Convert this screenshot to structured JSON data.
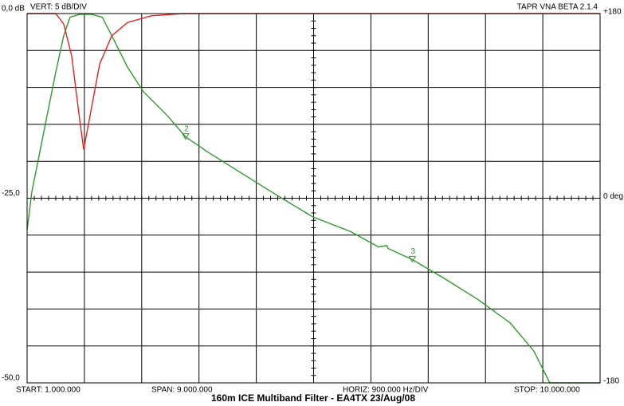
{
  "chart_data": {
    "type": "line",
    "header_left": "VERT:  5 dB/DIV",
    "header_right": "TAPR VNA BETA 2.1.4",
    "title": "160m ICE Multiband Filter - EA4TX 23/Aug/08",
    "footer_labels": [
      "START: 1.000.000",
      "SPAN: 9.000.000",
      "HORIZ: 900.000 Hz/DIV",
      "STOP: 10.000.000"
    ],
    "xlim": [
      1000000,
      10000000
    ],
    "xgrid": [
      1000000,
      1900000,
      2800000,
      3700000,
      4600000,
      5500000,
      6400000,
      7300000,
      8200000,
      9100000,
      10000000
    ],
    "ylim": [
      -50,
      0
    ],
    "ygrid": [
      0,
      -5,
      -10,
      -15,
      -20,
      -25,
      -30,
      -35,
      -40,
      -45,
      -50
    ],
    "yticks": [
      {
        "value": 0,
        "label": "0,0 dB"
      },
      {
        "value": -25,
        "label": "-25,0"
      },
      {
        "value": -50,
        "label": "-50,0"
      }
    ],
    "y2lim": [
      -180,
      180
    ],
    "y2ticks": [
      {
        "value": 180,
        "label": "+180"
      },
      {
        "value": 0,
        "label": "0 deg"
      },
      {
        "value": -180,
        "label": "-180"
      }
    ],
    "series": [
      {
        "color": "#2e9a2e",
        "x": [
          1000000,
          1075000,
          1175000,
          1325000,
          1450000,
          1575000,
          1675000,
          1825000,
          2010000,
          2180000,
          2330000,
          2580000,
          2830000,
          3200000,
          3490000,
          3830000,
          4330000,
          4830000,
          5480000,
          6080000,
          6520000,
          6650000,
          6670000,
          7050000,
          7580000,
          8080000,
          8590000,
          8960000,
          9210000,
          10000000
        ],
        "values": [
          -29.3,
          -24.1,
          -19.8,
          -13.3,
          -7.9,
          -3.0,
          -0.5,
          -0.1,
          -0.1,
          -0.5,
          -3.0,
          -7.3,
          -10.6,
          -13.8,
          -16.7,
          -18.7,
          -21.4,
          -24.1,
          -27.5,
          -29.5,
          -31.6,
          -31.4,
          -31.8,
          -33.3,
          -36.0,
          -38.7,
          -41.9,
          -45.7,
          -50.0,
          -50.0
        ]
      },
      {
        "color": "#e82020",
        "x": [
          1000000,
          1450000,
          1575000,
          1700000,
          1826000,
          1889000,
          1976000,
          2140000,
          2330000,
          2580000,
          2950000,
          3450000,
          10000000
        ],
        "values": [
          0,
          0,
          -1.4,
          -5.7,
          -14.4,
          -18.4,
          -14.4,
          -6.8,
          -3.0,
          -1.2,
          -0.3,
          0,
          0
        ]
      }
    ],
    "markers": [
      {
        "label": "2",
        "x": 3490000,
        "y": -16.7
      },
      {
        "label": "3",
        "x": 7050000,
        "y": -33.3
      }
    ]
  }
}
